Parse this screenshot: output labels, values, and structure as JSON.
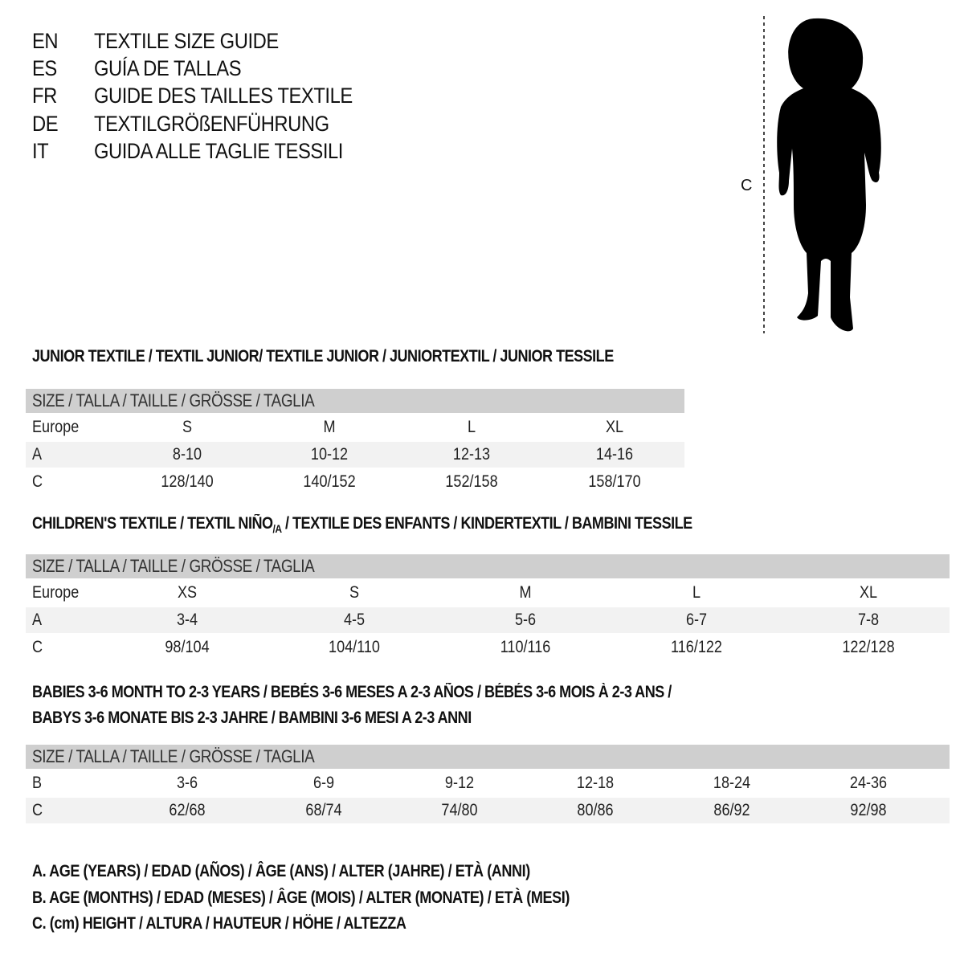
{
  "titles": [
    {
      "code": "EN",
      "text": "TEXTILE SIZE GUIDE"
    },
    {
      "code": "ES",
      "text": "GUÍA DE TALLAS"
    },
    {
      "code": "FR",
      "text": "GUIDE DES TAILLES TEXTILE"
    },
    {
      "code": "DE",
      "text": "TEXTILGRÖßENFÜHRUNG"
    },
    {
      "code": "IT",
      "text": "GUIDA ALLE TAGLIE TESSILI"
    }
  ],
  "figure": {
    "label": "C"
  },
  "size_header": "SIZE / TALLA / TAILLE / GRÖSSE / TAGLIA",
  "junior": {
    "title": "JUNIOR TEXTILE / TEXTIL JUNIOR/ TEXTILE JUNIOR / JUNIORTEXTIL / JUNIOR TESSILE",
    "rows": [
      {
        "label": "Europe",
        "cells": [
          "S",
          "M",
          "L",
          "XL"
        ]
      },
      {
        "label": "A",
        "cells": [
          "8-10",
          "10-12",
          "12-13",
          "14-16"
        ]
      },
      {
        "label": "C",
        "cells": [
          "128/140",
          "140/152",
          "152/158",
          "158/170"
        ]
      }
    ]
  },
  "children": {
    "title": "CHILDREN'S TEXTILE / TEXTIL NIÑO",
    "title_sub": "/A",
    "title_rest": " / TEXTILE DES ENFANTS / KINDERTEXTIL / BAMBINI TESSILE",
    "rows": [
      {
        "label": "Europe",
        "cells": [
          "XS",
          "S",
          "M",
          "L",
          "XL"
        ]
      },
      {
        "label": "A",
        "cells": [
          "3-4",
          "4-5",
          "5-6",
          "6-7",
          "7-8"
        ]
      },
      {
        "label": "C",
        "cells": [
          "98/104",
          "104/110",
          "110/116",
          "116/122",
          "122/128"
        ]
      }
    ]
  },
  "babies": {
    "title_line1": "BABIES 3-6 MONTH TO 2-3 YEARS / BEBÉS 3-6 MESES A 2-3 AÑOS / BÉBÉS 3-6 MOIS À 2-3 ANS /",
    "title_line2": "BABYS 3-6 MONATE BIS 2-3 JAHRE / BAMBINI 3-6 MESI A 2-3 ANNI",
    "rows": [
      {
        "label": "B",
        "cells": [
          "3-6",
          "6-9",
          "9-12",
          "12-18",
          "18-24",
          "24-36"
        ]
      },
      {
        "label": "C",
        "cells": [
          "62/68",
          "68/74",
          "74/80",
          "80/86",
          "86/92",
          "92/98"
        ]
      }
    ]
  },
  "footnotes": [
    "A. AGE (YEARS) / EDAD (AÑOS) / ÂGE (ANS) / ALTER (JAHRE) / ETÀ (ANNI)",
    "B. AGE (MONTHS) / EDAD (MESES) / ÂGE (MOIS) / ALTER (MONATE) / ETÀ (MESI)",
    "C. (cm) HEIGHT / ALTURA / HAUTEUR / HÖHE / ALTEZZA"
  ]
}
